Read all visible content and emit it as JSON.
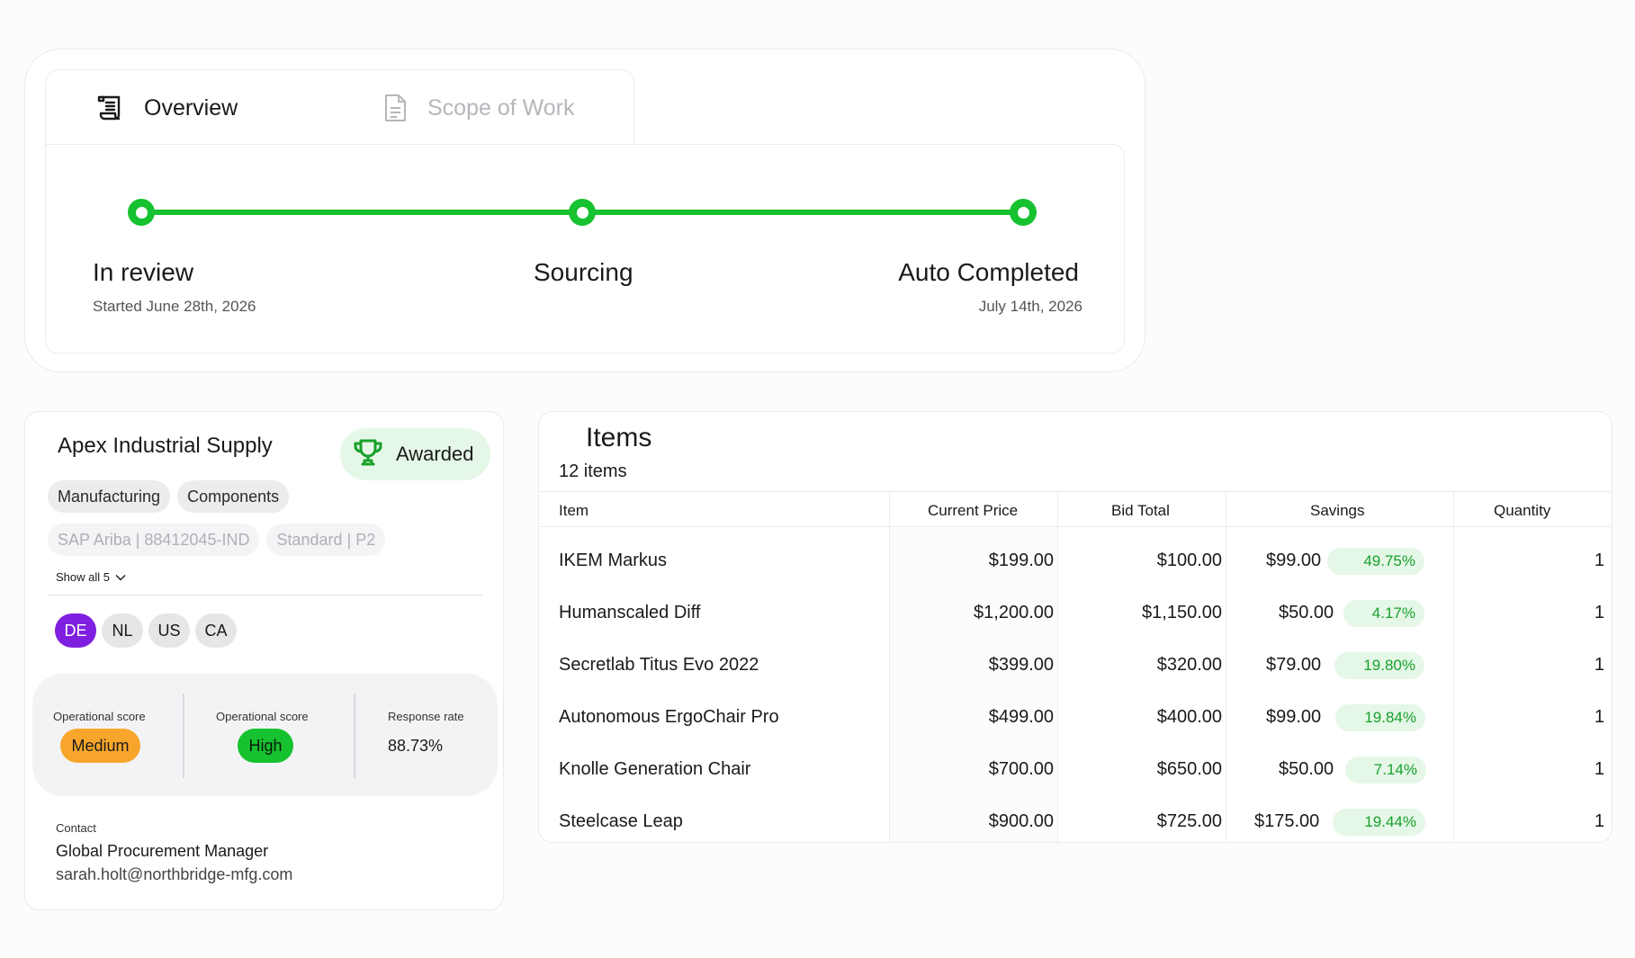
{
  "tabs": [
    {
      "label": "Overview",
      "icon": "scroll-icon"
    },
    {
      "label": "Scope of Work",
      "icon": "document-icon"
    }
  ],
  "progress": {
    "steps": [
      {
        "title": "In review",
        "subtitle": "Started June 28th, 2026"
      },
      {
        "title": "Sourcing",
        "subtitle": ""
      },
      {
        "title": "Auto Completed",
        "subtitle": "July 14th, 2026"
      }
    ],
    "color": "#16c22f"
  },
  "supplier": {
    "name": "Apex Industrial Supply",
    "badge": "Awarded",
    "badge_icon": "trophy-icon",
    "categories": [
      "Manufacturing",
      "Components"
    ],
    "identifiers": [
      "SAP Ariba | 88412045-IND",
      "Standard | P2"
    ],
    "show_all": "Show all 5",
    "countries": [
      "DE",
      "NL",
      "US",
      "CA"
    ],
    "active_country": "DE",
    "active_color": "#7f1fe0",
    "scores": [
      {
        "label": "Operational score",
        "value": "Medium",
        "color": "#f8a62b"
      },
      {
        "label": "Operational score",
        "value": "High",
        "color": "#16c22f"
      },
      {
        "label": "Response rate",
        "value": "88.73%"
      }
    ],
    "contact": {
      "label": "Contact",
      "role": "Global Procurement Manager",
      "email": "sarah.holt@northbridge-mfg.com"
    }
  },
  "items": {
    "title": "Items",
    "count": "12 items",
    "columns": [
      "Item",
      "Current Price",
      "Bid Total",
      "Savings",
      "Quantity"
    ],
    "rows": [
      {
        "item": "IKEM Markus",
        "current": "$199.00",
        "bid": "$100.00",
        "savings": "$99.00",
        "pct": "49.75%",
        "qty": "1"
      },
      {
        "item": "Humanscaled Diff",
        "current": "$1,200.00",
        "bid": "$1,150.00",
        "savings": "$50.00",
        "pct": "4.17%",
        "qty": "1"
      },
      {
        "item": "Secretlab Titus Evo 2022",
        "current": "$399.00",
        "bid": "$320.00",
        "savings": "$79.00",
        "pct": "19.80%",
        "qty": "1"
      },
      {
        "item": "Autonomous ErgoChair Pro",
        "current": "$499.00",
        "bid": "$400.00",
        "savings": "$99.00",
        "pct": "19.84%",
        "qty": "1"
      },
      {
        "item": "Knolle Generation Chair",
        "current": "$700.00",
        "bid": "$650.00",
        "savings": "$50.00",
        "pct": "7.14%",
        "qty": "1"
      },
      {
        "item": "Steelcase Leap",
        "current": "$900.00",
        "bid": "$725.00",
        "savings": "$175.00",
        "pct": "19.44%",
        "qty": "1"
      }
    ],
    "pct_color": "#17a12c"
  }
}
